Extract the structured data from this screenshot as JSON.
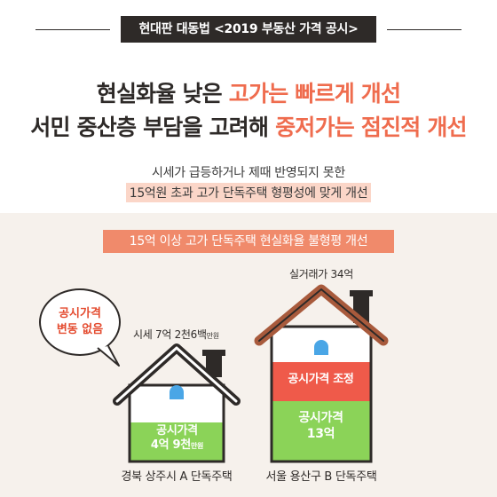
{
  "header_tag": "현대판 대동법 <2019 부동산 가격 공시>",
  "headline": {
    "line1_plain": "현실화율 낮은 ",
    "line1_accent": "고가는 빠르게 개선",
    "line2_plain": "서민 중산층 부담을 고려해 ",
    "line2_accent": "중저가는 점진적 개선"
  },
  "subtext": {
    "line1": "시세가 급등하거나 제때 반영되지 못한",
    "line2": "15억원 초과 고가 단독주택 형평성에 맞게 개선"
  },
  "band_title": "15억 이상 고가 단독주택 현실화율 불형평 개선",
  "bubble": {
    "line1": "공시가격",
    "line2": "변동 없음"
  },
  "house_a": {
    "market_label": "시세 7억 2천6백",
    "market_unit": "만원",
    "price_title": "공시가격",
    "price_value": "4억 9천",
    "price_unit": "만원",
    "location": "경북 상주시 A 단독주택"
  },
  "house_b": {
    "market_label": "실거래가 34억",
    "adjust_label": "공시가격 조정",
    "price_title": "공시가격",
    "price_value": "13억",
    "location": "서울 용산구 B 단독주택"
  },
  "colors": {
    "dark": "#2e2a28",
    "accent": "#ef6c4e",
    "band": "#f08a6b",
    "roof_brown": "#a85a3c",
    "green": "#8bd358",
    "window_blue": "#4aa6e6",
    "adjust_red": "#ef5a4a",
    "highlight": "#fbd6c8",
    "lower_bg": "#f6f1ec"
  }
}
